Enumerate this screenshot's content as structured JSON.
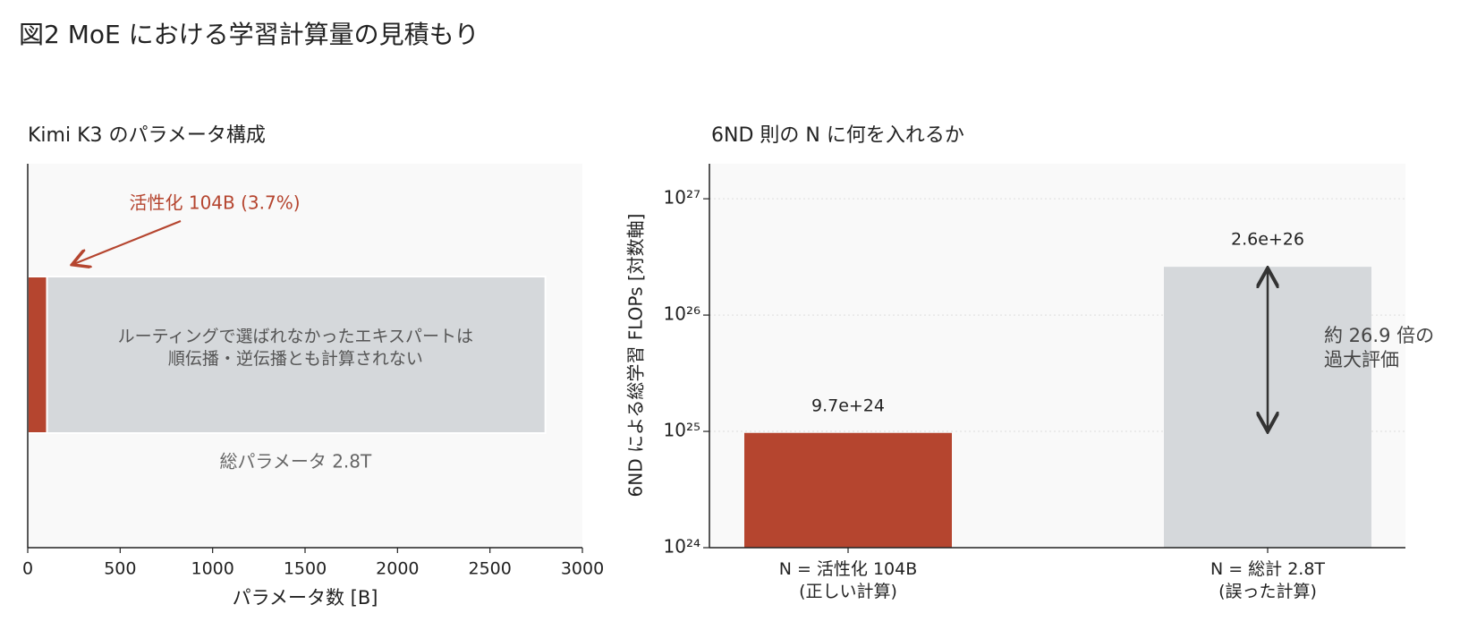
{
  "title": "図2  MoE における学習計算量の見積もり",
  "chart_data": [
    {
      "type": "hbar",
      "title": "Kimi K3 のパラメータ構成",
      "values": [
        104,
        2800
      ],
      "value_labels": [
        "活性化 104B (3.7%)",
        "総パラメータ 2.8T"
      ],
      "colors": [
        "#b5452f",
        "#d5d8db"
      ],
      "annotation": "ルーティングで選ばれなかったエキスパートは\n順伝播・逆伝播とも計算されない",
      "xlabel": "パラメータ数 [B]",
      "xlim": [
        0,
        3000
      ],
      "xticks": [
        0,
        500,
        1000,
        1500,
        2000,
        2500,
        3000
      ]
    },
    {
      "type": "bar",
      "title": "6ND 則の N に何を入れるか",
      "categories": [
        "N = 活性化 104B\n(正しい計算)",
        "N = 総計 2.8T\n(誤った計算)"
      ],
      "values": [
        9.7e+24,
        2.6e+26
      ],
      "value_labels": [
        "9.7e+24",
        "2.6e+26"
      ],
      "colors": [
        "#b5452f",
        "#d5d8db"
      ],
      "annotation": "約 26.9 倍の\n過大評価",
      "ylabel": "6ND による総学習 FLOPs [対数軸]",
      "log_scale": true,
      "grid": true,
      "ylim": [
        1e+24,
        2e+27
      ],
      "yticks": [
        {
          "value": 1e+24,
          "label": "10²⁴"
        },
        {
          "value": 1e+25,
          "label": "10²⁵"
        },
        {
          "value": 1e+26,
          "label": "10²⁶"
        },
        {
          "value": 1e+27,
          "label": "10²⁷"
        }
      ]
    }
  ]
}
